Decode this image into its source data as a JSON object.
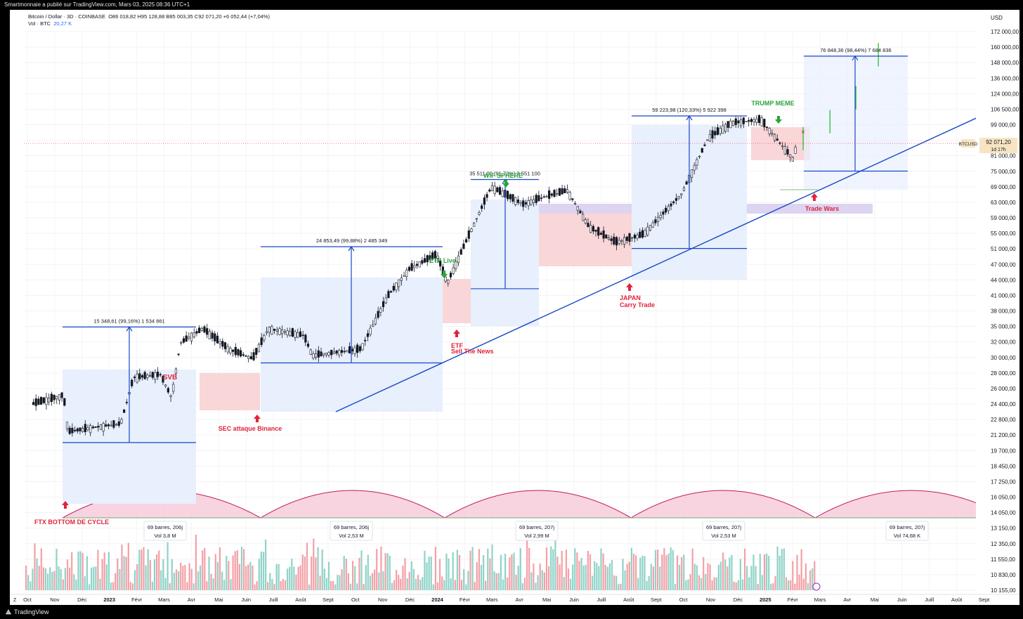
{
  "header": {
    "published": "Smartmonnaie a publié sur TradingView.com, Mars 03, 2025 08:36 UTC+1"
  },
  "legend": {
    "symbol": "Bitcoin / Dollar · 3D · COINBASE",
    "ohlc": "O86 018,82  H95 128,88  B85 003,35  C92 071,20  +6 052,44 (+7,04%)",
    "vol_label": "Vol · BTC",
    "vol_value": "20,27 K"
  },
  "axis": {
    "currency": "USD",
    "price_ticks": [
      "172 000,00",
      "160 000,00",
      "148 000,00",
      "136 000,00",
      "124 000,00",
      "106 500,00",
      "99 000,00",
      "87 000,00",
      "81 000,00",
      "75 000,00",
      "69 000,00",
      "63 000,00",
      "59 000,00",
      "55 000,00",
      "51 000,00",
      "47 000,00",
      "44 000,00",
      "41 000,00",
      "38 000,00",
      "35 000,00",
      "32 000,00",
      "30 000,00",
      "28 000,00",
      "26 000,00",
      "24 400,00",
      "22 800,00",
      "21 200,00",
      "19 700,00",
      "18 450,00",
      "17 250,00",
      "16 050,00",
      "14 050,00",
      "13 150,00",
      "12 350,00",
      "11 550,00",
      "10 830,00",
      "10 155,00"
    ],
    "time_ticks": [
      "Oct",
      "Nov",
      "Déc",
      "2023",
      "Févr",
      "Mars",
      "Avr",
      "Mai",
      "Juin",
      "Juill",
      "Août",
      "Sept",
      "Oct",
      "Nov",
      "Déc",
      "2024",
      "Févr",
      "Mars",
      "Avr",
      "Mai",
      "Juin",
      "Juill",
      "Août",
      "Sept",
      "Oct",
      "Nov",
      "Déc",
      "2025",
      "Févr",
      "Mars",
      "Avr",
      "Mai",
      "Juin",
      "Juill",
      "Août",
      "Sept"
    ],
    "bold_time_ticks": [
      "2023",
      "2024",
      "2025"
    ],
    "corner_z": "Z"
  },
  "price_label": {
    "ticker": "BTCUSD",
    "price": "92 071,20",
    "countdown": "1d 17h",
    "value": 92071.2
  },
  "measures": [
    {
      "label": "15 348,61 (99,16%) 1 534 861",
      "from": 15476,
      "to": 30825
    },
    {
      "label": "24 853,49 (99,88%) 2 485 349",
      "from": 24882,
      "to": 49735
    },
    {
      "label": "35 511,00 (91,72%) 3 551 100",
      "from": 38717,
      "to": 74228
    },
    {
      "label": "59 223,98 (120,33%) 5 922 398",
      "from": 49220,
      "to": 108444
    },
    {
      "label": "76 848,36 (98,44%) 7 684 836",
      "from": 78066,
      "to": 154914
    }
  ],
  "annotations": {
    "svb": "SVB",
    "sec": "SEC attaque Binance",
    "etf_live": "ETF Live",
    "etf_sell_1": "ETF",
    "etf_sell_2": "Sell The News",
    "wif": "WIF SPHERE",
    "japan_1": "JAPAN",
    "japan_2": "Carry Trade",
    "trump": "TRUMP MEME",
    "trade_wars": "Trade Wars",
    "ftx": "FTX BOTTOM DE CYCLE",
    "x_mark": "×"
  },
  "cycles": [
    {
      "bars": "69 barres, 206j",
      "vol": "Vol 3,8 M"
    },
    {
      "bars": "69 barres, 206j",
      "vol": "Vol 2,53 M"
    },
    {
      "bars": "69 barres, 207j",
      "vol": "Vol 2,99 M"
    },
    {
      "bars": "69 barres, 207j",
      "vol": "Vol 2,53 M"
    },
    {
      "bars": "69 barres, 207j",
      "vol": "Vol 74,68 K"
    }
  ],
  "footer": {
    "brand": "TradingView"
  },
  "colors": {
    "up": "#089981",
    "down": "#f23645",
    "projection": "#3bbf4a",
    "trendline": "#1848c8",
    "accent_red": "#e0243a",
    "accent_green": "#2aa53a",
    "box_blue": "#e8effd",
    "box_red": "#f9d6d8",
    "arc_fill": "#f6c6d6",
    "arc_stroke": "#c2185b",
    "zone_purple": "#d9cff0"
  },
  "chart_data": {
    "type": "candlestick",
    "title": "Bitcoin / Dollar · 3D · COINBASE",
    "price_scale": "log",
    "ylim": [
      9800,
      180000
    ],
    "currency": "USD",
    "series": [
      {
        "name": "BTCUSD price path (approx. closes)",
        "points": [
          [
            "2022-10-01",
            19500
          ],
          [
            "2022-11-05",
            20500
          ],
          [
            "2022-11-10",
            16500
          ],
          [
            "2022-12-15",
            17000
          ],
          [
            "2023-01-10",
            17300
          ],
          [
            "2023-01-25",
            22800
          ],
          [
            "2023-02-25",
            23200
          ],
          [
            "2023-03-10",
            20200
          ],
          [
            "2023-03-20",
            28000
          ],
          [
            "2023-04-15",
            30500
          ],
          [
            "2023-05-15",
            27000
          ],
          [
            "2023-06-12",
            25500
          ],
          [
            "2023-06-30",
            30500
          ],
          [
            "2023-08-10",
            29300
          ],
          [
            "2023-08-20",
            26000
          ],
          [
            "2023-10-15",
            27000
          ],
          [
            "2023-11-15",
            37000
          ],
          [
            "2023-12-10",
            43500
          ],
          [
            "2024-01-11",
            47500
          ],
          [
            "2024-01-23",
            40000
          ],
          [
            "2024-02-15",
            52000
          ],
          [
            "2024-03-14",
            71000
          ],
          [
            "2024-04-20",
            64000
          ],
          [
            "2024-05-15",
            67000
          ],
          [
            "2024-06-10",
            69500
          ],
          [
            "2024-07-05",
            56000
          ],
          [
            "2024-08-05",
            51000
          ],
          [
            "2024-09-06",
            53500
          ],
          [
            "2024-10-20",
            68000
          ],
          [
            "2024-11-20",
            95000
          ],
          [
            "2024-12-17",
            104000
          ],
          [
            "2025-01-20",
            106000
          ],
          [
            "2025-02-26",
            84000
          ],
          [
            "2025-03-03",
            92071
          ]
        ]
      },
      {
        "name": "Projection",
        "points": [
          [
            "2025-03-10",
            94000
          ],
          [
            "2025-04-10",
            104000
          ],
          [
            "2025-05-10",
            120000
          ],
          [
            "2025-06-05",
            155000
          ]
        ]
      }
    ],
    "volume": {
      "name": "Vol · BTC",
      "last": 20270
    }
  }
}
